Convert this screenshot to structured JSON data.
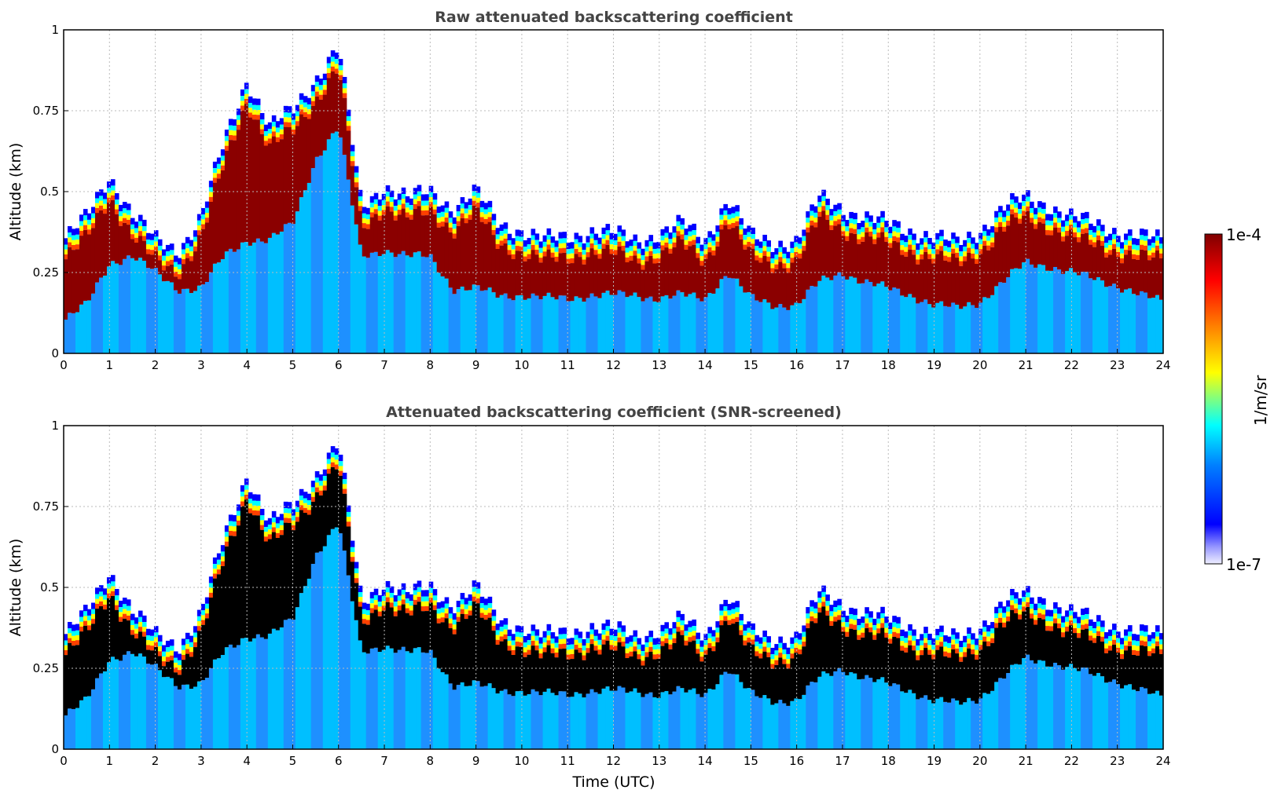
{
  "figure": {
    "colorbar": {
      "label": "1/m/sr",
      "max_label": "1e-4",
      "min_label": "1e-7"
    }
  },
  "chart_data": [
    {
      "type": "heatmap",
      "title": "Raw attenuated backscattering coefficient",
      "xlabel": "",
      "ylabel": "Altitude (km)",
      "xlim": [
        0,
        24
      ],
      "ylim": [
        0,
        1
      ],
      "x_ticks": [
        "0",
        "1",
        "2",
        "3",
        "4",
        "5",
        "6",
        "7",
        "8",
        "9",
        "10",
        "11",
        "12",
        "13",
        "14",
        "15",
        "16",
        "17",
        "18",
        "19",
        "20",
        "21",
        "22",
        "23",
        "24"
      ],
      "y_ticks": [
        "0",
        "0.25",
        "0.5",
        "0.75",
        "1"
      ],
      "grid": true,
      "colorscale": "jet (log)",
      "cloud_top_km": [
        0.35,
        0.42,
        0.55,
        0.43,
        0.35,
        0.32,
        0.42,
        0.65,
        0.85,
        0.7,
        0.75,
        0.85,
        0.95,
        0.45,
        0.52,
        0.48,
        0.5,
        0.45,
        0.5,
        0.4,
        0.38,
        0.35,
        0.36,
        0.38,
        0.37,
        0.35,
        0.37,
        0.4,
        0.35,
        0.48,
        0.36,
        0.34,
        0.35,
        0.48,
        0.45,
        0.42,
        0.4,
        0.38,
        0.36,
        0.34,
        0.38,
        0.45,
        0.48,
        0.46,
        0.42,
        0.4,
        0.38,
        0.36,
        0.35
      ],
      "cloud_base_km": [
        0.1,
        0.15,
        0.28,
        0.3,
        0.25,
        0.2,
        0.2,
        0.3,
        0.35,
        0.35,
        0.4,
        0.6,
        0.7,
        0.3,
        0.32,
        0.3,
        0.3,
        0.2,
        0.2,
        0.18,
        0.18,
        0.17,
        0.17,
        0.18,
        0.18,
        0.18,
        0.17,
        0.18,
        0.17,
        0.25,
        0.17,
        0.15,
        0.15,
        0.22,
        0.25,
        0.22,
        0.2,
        0.18,
        0.15,
        0.14,
        0.16,
        0.22,
        0.28,
        0.27,
        0.25,
        0.23,
        0.21,
        0.18,
        0.16
      ]
    },
    {
      "type": "heatmap",
      "title": "Attenuated backscattering coefficient (SNR-screened)",
      "xlabel": "Time (UTC)",
      "ylabel": "Altitude (km)",
      "xlim": [
        0,
        24
      ],
      "ylim": [
        0,
        1
      ],
      "x_ticks": [
        "0",
        "1",
        "2",
        "3",
        "4",
        "5",
        "6",
        "7",
        "8",
        "9",
        "10",
        "11",
        "12",
        "13",
        "14",
        "15",
        "16",
        "17",
        "18",
        "19",
        "20",
        "21",
        "22",
        "23",
        "24"
      ],
      "y_ticks": [
        "0",
        "0.25",
        "0.5",
        "0.75",
        "1"
      ],
      "grid": true,
      "colorscale": "jet (log), saturated values in black",
      "cloud_top_km": [
        0.35,
        0.42,
        0.55,
        0.43,
        0.35,
        0.32,
        0.42,
        0.65,
        0.85,
        0.7,
        0.75,
        0.85,
        0.95,
        0.45,
        0.52,
        0.48,
        0.5,
        0.45,
        0.5,
        0.4,
        0.38,
        0.35,
        0.36,
        0.38,
        0.37,
        0.35,
        0.37,
        0.4,
        0.35,
        0.48,
        0.36,
        0.34,
        0.35,
        0.48,
        0.45,
        0.42,
        0.4,
        0.38,
        0.36,
        0.34,
        0.38,
        0.45,
        0.48,
        0.46,
        0.42,
        0.4,
        0.38,
        0.36,
        0.35
      ],
      "cloud_base_km": [
        0.1,
        0.15,
        0.28,
        0.3,
        0.25,
        0.2,
        0.2,
        0.3,
        0.35,
        0.35,
        0.4,
        0.6,
        0.7,
        0.3,
        0.32,
        0.3,
        0.3,
        0.2,
        0.2,
        0.18,
        0.18,
        0.17,
        0.17,
        0.18,
        0.18,
        0.18,
        0.17,
        0.18,
        0.17,
        0.25,
        0.17,
        0.15,
        0.15,
        0.22,
        0.25,
        0.22,
        0.2,
        0.18,
        0.15,
        0.14,
        0.16,
        0.22,
        0.28,
        0.27,
        0.25,
        0.23,
        0.21,
        0.18,
        0.16
      ]
    }
  ]
}
